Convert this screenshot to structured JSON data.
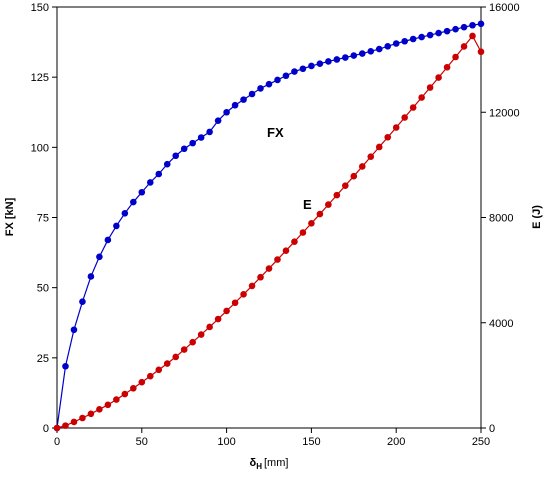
{
  "chart_data": {
    "type": "line",
    "title": "",
    "xlabel": {
      "main": "δ",
      "sub": "H",
      "unit": "[mm]"
    },
    "ylabel_left": "FX [kN]",
    "ylabel_right": "E (J)",
    "xlim": [
      0,
      250
    ],
    "ylim_left": [
      0,
      150
    ],
    "ylim_right": [
      0,
      16000
    ],
    "grid": false,
    "legend": "none",
    "x_ticks": [
      "0",
      "50",
      "100",
      "150",
      "200",
      "250"
    ],
    "y_left_ticks": [
      "0",
      "25",
      "50",
      "75",
      "100",
      "125",
      "150"
    ],
    "y_right_ticks": [
      "0",
      "4000",
      "8000",
      "12000",
      "16000"
    ],
    "series": [
      {
        "name": "FX",
        "axis": "left",
        "color": "#0000cc",
        "x": [
          0,
          5,
          10,
          15,
          20,
          25,
          30,
          35,
          40,
          45,
          50,
          55,
          60,
          65,
          70,
          75,
          80,
          85,
          90,
          95,
          100,
          105,
          110,
          115,
          120,
          125,
          130,
          135,
          140,
          145,
          150,
          155,
          160,
          165,
          170,
          175,
          180,
          185,
          190,
          195,
          200,
          205,
          210,
          215,
          220,
          225,
          230,
          235,
          240,
          245,
          250
        ],
        "values": [
          0,
          22,
          35,
          45,
          54,
          61,
          67,
          72,
          76.5,
          80.5,
          84,
          87.5,
          90.5,
          94,
          97,
          99.5,
          101.5,
          103.5,
          105.5,
          109.5,
          112.5,
          115,
          117,
          119,
          121,
          122.5,
          124,
          125.5,
          127,
          128,
          129,
          129.8,
          130.6,
          131.3,
          132,
          132.7,
          133.4,
          134.2,
          135,
          136,
          137,
          137.8,
          138.6,
          139.3,
          140,
          140.7,
          141.4,
          142.1,
          142.8,
          143.5,
          144
        ]
      },
      {
        "name": "E",
        "axis": "right",
        "color": "#cc0000",
        "x": [
          0,
          5,
          10,
          15,
          20,
          25,
          30,
          35,
          40,
          45,
          50,
          55,
          60,
          65,
          70,
          75,
          80,
          85,
          90,
          95,
          100,
          105,
          110,
          115,
          120,
          125,
          130,
          135,
          140,
          145,
          150,
          155,
          160,
          165,
          170,
          175,
          180,
          185,
          190,
          195,
          200,
          205,
          210,
          215,
          220,
          225,
          230,
          235,
          240,
          245,
          250
        ],
        "values": [
          0,
          90,
          230,
          380,
          540,
          710,
          880,
          1080,
          1290,
          1510,
          1740,
          1970,
          2210,
          2450,
          2700,
          2980,
          3260,
          3550,
          3840,
          4140,
          4450,
          4760,
          5080,
          5400,
          5730,
          6060,
          6400,
          6740,
          7080,
          7430,
          7780,
          8130,
          8490,
          8850,
          9210,
          9570,
          9940,
          10310,
          10680,
          11050,
          11420,
          11800,
          12180,
          12560,
          12940,
          13320,
          13710,
          14100,
          14500,
          14900,
          14300
        ]
      }
    ],
    "annotations": [
      {
        "text": "FX",
        "series": "FX"
      },
      {
        "text": "E",
        "series": "E"
      }
    ]
  }
}
